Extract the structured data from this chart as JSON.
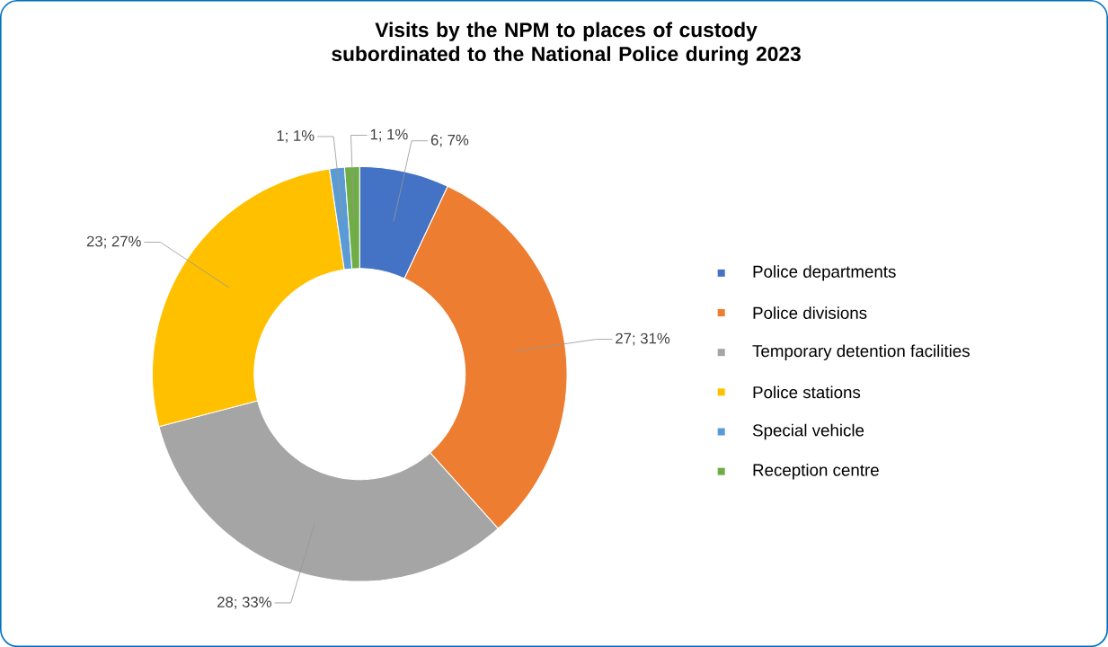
{
  "chart_data": {
    "type": "donut",
    "title": "Visits by the NPM to places of custody subordinated to the National Police during 2023",
    "categories": [
      "Police departments",
      "Police divisions",
      "Temporary detention facilities",
      "Police stations",
      "Special vehicle",
      "Reception centre"
    ],
    "values": [
      6,
      27,
      28,
      23,
      1,
      1
    ],
    "colors": [
      "#4472c4",
      "#ed7d31",
      "#a5a5a5",
      "#ffc000",
      "#5b9bd5",
      "#70ad47"
    ],
    "value_labels": [
      "6; 7%",
      "27; 31%",
      "28; 33%",
      "23; 27%",
      "1; 1%",
      "1; 1%"
    ],
    "legend": "right"
  }
}
